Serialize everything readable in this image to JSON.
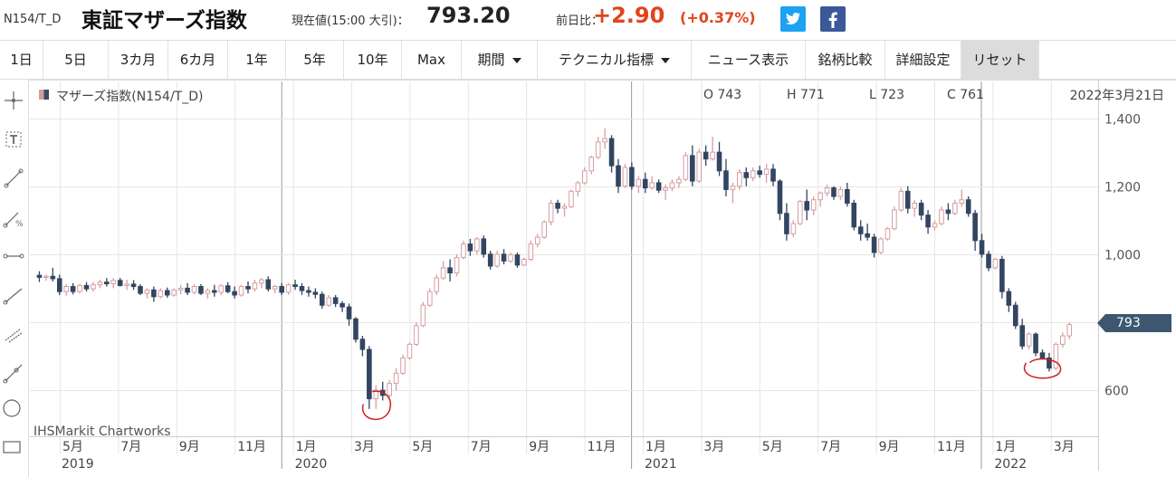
{
  "header": {
    "code": "N154/T_D",
    "name": "東証マザーズ指数",
    "price_label": "現在値(15:00 大引)：",
    "price": "793.20",
    "change_label": "前日比：",
    "change": "+2.90",
    "change_pct": "(+0.37%)",
    "twitter_icon": "twitter-icon",
    "facebook_icon": "facebook-icon",
    "colors": {
      "up": "#e0451b",
      "twitter": "#1da1f2",
      "facebook": "#3b5998"
    }
  },
  "toolbar": {
    "buttons": [
      "1日",
      "5日",
      "3カ月",
      "6カ月",
      "1年",
      "5年",
      "10年",
      "Max",
      "期間",
      "テクニカル指標",
      "ニュース表示",
      "銘柄比較",
      "詳細設定",
      "リセット"
    ]
  },
  "tools": {
    "icons": [
      "crosshair-icon",
      "text-tool-icon",
      "line-tool-icon",
      "percent-line-icon",
      "horizontal-line-icon",
      "trend-line-icon",
      "channel-icon",
      "ray-icon",
      "circle-icon",
      "rectangle-icon"
    ]
  },
  "chart_info": {
    "legend": "マザーズ指数(N154/T_D)",
    "open": "O 743",
    "high": "H 771",
    "low": "L 723",
    "close": "C 761",
    "date": "2022年3月21日",
    "last_value": "793",
    "credit": "IHSMarkit Chartworks"
  },
  "chart_data": {
    "type": "candlestick",
    "title": "",
    "xlabel": "",
    "ylabel": "",
    "ylim": [
      470,
      1460
    ],
    "y_ticks": [
      "1,400",
      "1,200",
      "1,000",
      "800",
      "600"
    ],
    "y_tick_values": [
      1400,
      1200,
      1000,
      800,
      600
    ],
    "y_tick_label_shown": [
      true,
      true,
      true,
      false,
      true
    ],
    "x_months": [
      "5月",
      "7月",
      "9月",
      "11月",
      "1月",
      "3月",
      "5月",
      "7月",
      "9月",
      "11月",
      "1月",
      "3月",
      "5月",
      "7月",
      "9月",
      "11月",
      "1月",
      "3月"
    ],
    "x_month_positions": [
      3.4,
      5.4,
      7.4,
      9.4,
      11.4,
      13.4,
      15.4,
      17.4,
      19.4,
      21.4,
      23.4,
      25.4,
      27.4,
      29.4,
      31.4,
      33.4,
      35.4,
      37.4
    ],
    "x_years": [
      "2019",
      "2020",
      "2021",
      "2022"
    ],
    "x_year_positions": [
      3.4,
      11.4,
      23.4,
      35.4
    ],
    "year_boundaries": [
      11,
      23,
      35
    ],
    "grid": true,
    "colors": {
      "up": "#d69ea3",
      "down": "#324561",
      "annotation": "#cc2222",
      "last": "#3d5770"
    },
    "weeks_per_month": 4.33,
    "week0_month": 2.7,
    "candles": [
      [
        938,
        950,
        918,
        932
      ],
      [
        932,
        940,
        922,
        935
      ],
      [
        935,
        960,
        920,
        928
      ],
      [
        928,
        940,
        880,
        890
      ],
      [
        890,
        912,
        878,
        905
      ],
      [
        905,
        915,
        882,
        890
      ],
      [
        890,
        913,
        885,
        908
      ],
      [
        908,
        918,
        890,
        898
      ],
      [
        898,
        918,
        890,
        910
      ],
      [
        910,
        925,
        900,
        918
      ],
      [
        918,
        930,
        905,
        913
      ],
      [
        913,
        930,
        900,
        923
      ],
      [
        923,
        930,
        905,
        908
      ],
      [
        908,
        925,
        895,
        912
      ],
      [
        912,
        924,
        895,
        905
      ],
      [
        905,
        912,
        880,
        885
      ],
      [
        885,
        900,
        870,
        895
      ],
      [
        895,
        905,
        860,
        875
      ],
      [
        875,
        900,
        870,
        893
      ],
      [
        893,
        902,
        872,
        880
      ],
      [
        880,
        900,
        875,
        895
      ],
      [
        895,
        910,
        882,
        900
      ],
      [
        900,
        915,
        880,
        888
      ],
      [
        888,
        912,
        882,
        905
      ],
      [
        905,
        912,
        880,
        885
      ],
      [
        885,
        900,
        870,
        893
      ],
      [
        893,
        910,
        875,
        888
      ],
      [
        888,
        912,
        880,
        907
      ],
      [
        907,
        918,
        885,
        890
      ],
      [
        890,
        905,
        870,
        880
      ],
      [
        880,
        910,
        875,
        905
      ],
      [
        905,
        920,
        885,
        898
      ],
      [
        898,
        925,
        890,
        915
      ],
      [
        915,
        930,
        900,
        925
      ],
      [
        925,
        935,
        890,
        898
      ],
      [
        898,
        910,
        885,
        905
      ],
      [
        905,
        915,
        880,
        888
      ],
      [
        888,
        915,
        880,
        910
      ],
      [
        910,
        925,
        895,
        905
      ],
      [
        905,
        915,
        880,
        893
      ],
      [
        893,
        905,
        875,
        888
      ],
      [
        888,
        900,
        870,
        882
      ],
      [
        882,
        890,
        840,
        850
      ],
      [
        850,
        880,
        845,
        872
      ],
      [
        872,
        880,
        845,
        855
      ],
      [
        855,
        862,
        830,
        845
      ],
      [
        845,
        855,
        790,
        810
      ],
      [
        810,
        815,
        740,
        750
      ],
      [
        750,
        760,
        700,
        720
      ],
      [
        720,
        730,
        545,
        575
      ],
      [
        575,
        615,
        545,
        600
      ],
      [
        600,
        625,
        570,
        585
      ],
      [
        585,
        630,
        578,
        620
      ],
      [
        620,
        665,
        600,
        650
      ],
      [
        650,
        705,
        645,
        695
      ],
      [
        695,
        740,
        690,
        735
      ],
      [
        735,
        800,
        730,
        790
      ],
      [
        790,
        860,
        785,
        850
      ],
      [
        850,
        900,
        845,
        890
      ],
      [
        890,
        940,
        880,
        930
      ],
      [
        930,
        980,
        925,
        960
      ],
      [
        960,
        985,
        920,
        945
      ],
      [
        945,
        1000,
        935,
        990
      ],
      [
        990,
        1040,
        985,
        1030
      ],
      [
        1030,
        1045,
        995,
        1010
      ],
      [
        1010,
        1050,
        1000,
        1045
      ],
      [
        1045,
        1055,
        990,
        1000
      ],
      [
        1000,
        1010,
        955,
        965
      ],
      [
        965,
        1010,
        960,
        1000
      ],
      [
        1000,
        1015,
        970,
        980
      ],
      [
        980,
        1005,
        975,
        998
      ],
      [
        998,
        1005,
        960,
        968
      ],
      [
        968,
        990,
        965,
        985
      ],
      [
        985,
        1040,
        980,
        1030
      ],
      [
        1030,
        1060,
        1020,
        1050
      ],
      [
        1050,
        1100,
        1045,
        1095
      ],
      [
        1095,
        1160,
        1085,
        1150
      ],
      [
        1150,
        1160,
        1120,
        1135
      ],
      [
        1135,
        1150,
        1110,
        1140
      ],
      [
        1140,
        1190,
        1135,
        1185
      ],
      [
        1185,
        1215,
        1170,
        1210
      ],
      [
        1210,
        1255,
        1205,
        1245
      ],
      [
        1245,
        1290,
        1235,
        1285
      ],
      [
        1285,
        1345,
        1280,
        1330
      ],
      [
        1330,
        1370,
        1310,
        1340
      ],
      [
        1340,
        1350,
        1240,
        1260
      ],
      [
        1260,
        1280,
        1180,
        1200
      ],
      [
        1200,
        1265,
        1195,
        1255
      ],
      [
        1255,
        1270,
        1190,
        1200
      ],
      [
        1200,
        1230,
        1180,
        1220
      ],
      [
        1220,
        1240,
        1180,
        1195
      ],
      [
        1195,
        1230,
        1190,
        1210
      ],
      [
        1210,
        1220,
        1180,
        1188
      ],
      [
        1188,
        1205,
        1160,
        1195
      ],
      [
        1195,
        1220,
        1185,
        1210
      ],
      [
        1210,
        1230,
        1195,
        1220
      ],
      [
        1220,
        1300,
        1215,
        1290
      ],
      [
        1290,
        1320,
        1200,
        1215
      ],
      [
        1215,
        1310,
        1210,
        1300
      ],
      [
        1300,
        1320,
        1260,
        1280
      ],
      [
        1280,
        1345,
        1275,
        1300
      ],
      [
        1300,
        1330,
        1230,
        1245
      ],
      [
        1245,
        1280,
        1170,
        1190
      ],
      [
        1190,
        1210,
        1150,
        1200
      ],
      [
        1200,
        1250,
        1190,
        1240
      ],
      [
        1240,
        1255,
        1200,
        1225
      ],
      [
        1225,
        1255,
        1215,
        1245
      ],
      [
        1245,
        1260,
        1225,
        1235
      ],
      [
        1235,
        1265,
        1210,
        1250
      ],
      [
        1250,
        1265,
        1200,
        1215
      ],
      [
        1215,
        1220,
        1100,
        1120
      ],
      [
        1120,
        1150,
        1040,
        1060
      ],
      [
        1060,
        1100,
        1050,
        1090
      ],
      [
        1090,
        1160,
        1085,
        1155
      ],
      [
        1155,
        1190,
        1100,
        1130
      ],
      [
        1130,
        1170,
        1115,
        1160
      ],
      [
        1160,
        1185,
        1140,
        1180
      ],
      [
        1180,
        1205,
        1170,
        1195
      ],
      [
        1195,
        1200,
        1160,
        1170
      ],
      [
        1170,
        1200,
        1160,
        1190
      ],
      [
        1190,
        1210,
        1140,
        1150
      ],
      [
        1150,
        1160,
        1070,
        1080
      ],
      [
        1080,
        1100,
        1040,
        1060
      ],
      [
        1060,
        1090,
        1040,
        1050
      ],
      [
        1050,
        1060,
        990,
        1005
      ],
      [
        1005,
        1050,
        1000,
        1045
      ],
      [
        1045,
        1080,
        1040,
        1075
      ],
      [
        1075,
        1140,
        1070,
        1130
      ],
      [
        1130,
        1195,
        1125,
        1185
      ],
      [
        1185,
        1200,
        1120,
        1135
      ],
      [
        1135,
        1160,
        1110,
        1150
      ],
      [
        1150,
        1160,
        1100,
        1115
      ],
      [
        1115,
        1130,
        1060,
        1080
      ],
      [
        1080,
        1100,
        1070,
        1090
      ],
      [
        1090,
        1140,
        1085,
        1130
      ],
      [
        1130,
        1150,
        1100,
        1120
      ],
      [
        1120,
        1160,
        1115,
        1150
      ],
      [
        1150,
        1190,
        1140,
        1160
      ],
      [
        1160,
        1170,
        1110,
        1120
      ],
      [
        1120,
        1130,
        1010,
        1040
      ],
      [
        1040,
        1060,
        990,
        1000
      ],
      [
        1000,
        1010,
        950,
        960
      ],
      [
        960,
        990,
        955,
        985
      ],
      [
        985,
        995,
        870,
        890
      ],
      [
        890,
        900,
        830,
        850
      ],
      [
        850,
        860,
        780,
        790
      ],
      [
        790,
        810,
        720,
        730
      ],
      [
        730,
        770,
        720,
        765
      ],
      [
        765,
        770,
        700,
        710
      ],
      [
        710,
        720,
        690,
        695
      ],
      [
        695,
        710,
        655,
        665
      ],
      [
        665,
        740,
        660,
        735
      ],
      [
        735,
        770,
        725,
        760
      ],
      [
        760,
        800,
        750,
        793
      ]
    ]
  }
}
